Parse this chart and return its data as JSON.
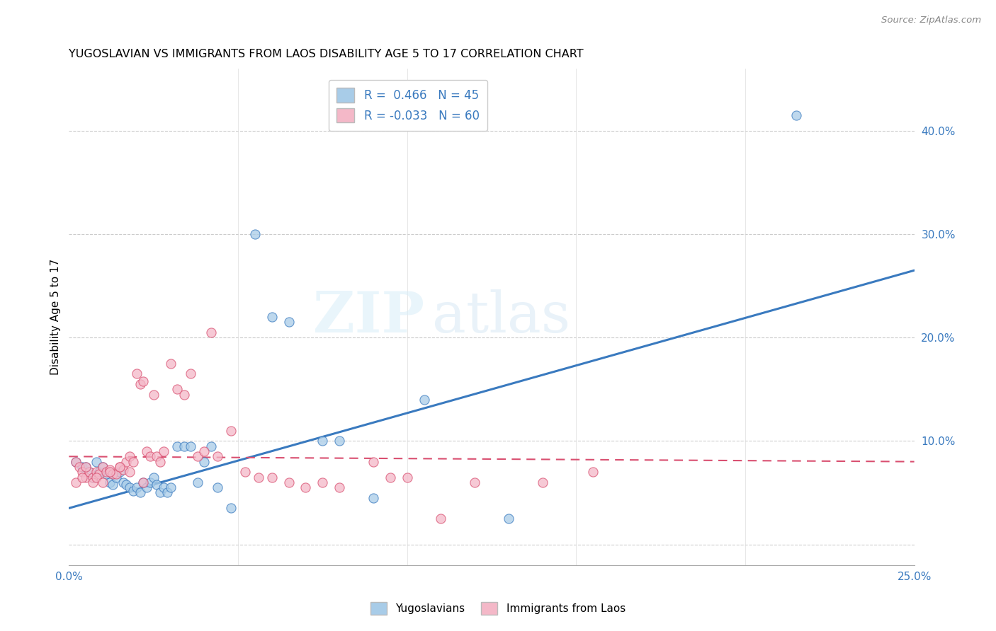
{
  "title": "YUGOSLAVIAN VS IMMIGRANTS FROM LAOS DISABILITY AGE 5 TO 17 CORRELATION CHART",
  "source": "Source: ZipAtlas.com",
  "ylabel": "Disability Age 5 to 17",
  "xlim": [
    0.0,
    0.25
  ],
  "ylim": [
    -0.02,
    0.46
  ],
  "yticks_right": [
    0.0,
    0.1,
    0.2,
    0.3,
    0.4
  ],
  "yticklabels_right": [
    "",
    "10.0%",
    "20.0%",
    "30.0%",
    "40.0%"
  ],
  "color_blue": "#a8cce8",
  "color_pink": "#f4b8c8",
  "color_blue_line": "#3a7abf",
  "color_pink_line": "#d94f70",
  "watermark_zip": "ZIP",
  "watermark_atlas": "atlas",
  "blue_line_x": [
    0.0,
    0.25
  ],
  "blue_line_y": [
    0.035,
    0.265
  ],
  "pink_line_x": [
    0.0,
    0.25
  ],
  "pink_line_y": [
    0.085,
    0.08
  ],
  "blue_x": [
    0.002,
    0.004,
    0.005,
    0.006,
    0.007,
    0.008,
    0.009,
    0.01,
    0.011,
    0.012,
    0.013,
    0.014,
    0.015,
    0.016,
    0.017,
    0.018,
    0.019,
    0.02,
    0.021,
    0.022,
    0.023,
    0.024,
    0.025,
    0.026,
    0.027,
    0.028,
    0.029,
    0.03,
    0.032,
    0.034,
    0.036,
    0.038,
    0.04,
    0.042,
    0.044,
    0.048,
    0.055,
    0.06,
    0.065,
    0.075,
    0.08,
    0.09,
    0.105,
    0.13,
    0.215
  ],
  "blue_y": [
    0.08,
    0.075,
    0.075,
    0.07,
    0.065,
    0.08,
    0.07,
    0.075,
    0.068,
    0.06,
    0.058,
    0.065,
    0.07,
    0.06,
    0.058,
    0.055,
    0.052,
    0.055,
    0.05,
    0.06,
    0.055,
    0.06,
    0.065,
    0.058,
    0.05,
    0.055,
    0.05,
    0.055,
    0.095,
    0.095,
    0.095,
    0.06,
    0.08,
    0.095,
    0.055,
    0.035,
    0.3,
    0.22,
    0.215,
    0.1,
    0.1,
    0.045,
    0.14,
    0.025,
    0.415
  ],
  "pink_x": [
    0.002,
    0.003,
    0.004,
    0.005,
    0.006,
    0.007,
    0.008,
    0.009,
    0.01,
    0.011,
    0.012,
    0.013,
    0.014,
    0.015,
    0.016,
    0.017,
    0.018,
    0.019,
    0.02,
    0.021,
    0.022,
    0.023,
    0.024,
    0.025,
    0.026,
    0.027,
    0.028,
    0.03,
    0.032,
    0.034,
    0.036,
    0.038,
    0.04,
    0.042,
    0.044,
    0.048,
    0.052,
    0.056,
    0.06,
    0.065,
    0.07,
    0.075,
    0.08,
    0.09,
    0.095,
    0.1,
    0.11,
    0.12,
    0.14,
    0.155,
    0.002,
    0.004,
    0.005,
    0.007,
    0.008,
    0.01,
    0.012,
    0.015,
    0.018,
    0.022
  ],
  "pink_y": [
    0.08,
    0.075,
    0.07,
    0.065,
    0.07,
    0.065,
    0.07,
    0.068,
    0.075,
    0.07,
    0.072,
    0.068,
    0.068,
    0.075,
    0.072,
    0.08,
    0.085,
    0.08,
    0.165,
    0.155,
    0.158,
    0.09,
    0.085,
    0.145,
    0.085,
    0.08,
    0.09,
    0.175,
    0.15,
    0.145,
    0.165,
    0.085,
    0.09,
    0.205,
    0.085,
    0.11,
    0.07,
    0.065,
    0.065,
    0.06,
    0.055,
    0.06,
    0.055,
    0.08,
    0.065,
    0.065,
    0.025,
    0.06,
    0.06,
    0.07,
    0.06,
    0.065,
    0.075,
    0.06,
    0.065,
    0.06,
    0.07,
    0.075,
    0.07,
    0.06
  ]
}
